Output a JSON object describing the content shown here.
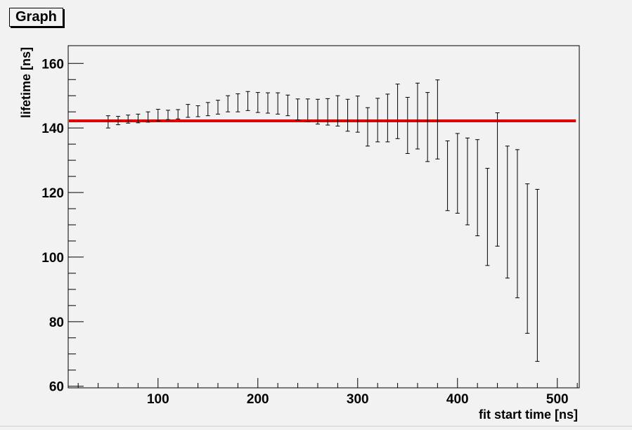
{
  "canvas": {
    "title": "Graph"
  },
  "chart_data": {
    "type": "scatter",
    "xlabel": "fit start time [ns]",
    "ylabel": "lifetime [ns]",
    "xlim": [
      10,
      522
    ],
    "ylim": [
      59.5,
      165.5
    ],
    "x_ticks": [
      100,
      200,
      300,
      400,
      500
    ],
    "y_ticks": [
      60,
      80,
      100,
      120,
      140,
      160
    ],
    "x_tick_labels": [
      "100",
      "200",
      "300",
      "400",
      "500"
    ],
    "y_tick_labels": [
      "60",
      "80",
      "100",
      "120",
      "140",
      "160"
    ],
    "grid": false,
    "fit_line": {
      "y": 142.2,
      "color": "#e00000"
    },
    "errorbar_color": "#000000",
    "points": [
      {
        "x": 50,
        "low": 140.0,
        "high": 143.8
      },
      {
        "x": 60,
        "low": 141.0,
        "high": 143.6
      },
      {
        "x": 70,
        "low": 141.5,
        "high": 144.0
      },
      {
        "x": 80,
        "low": 141.6,
        "high": 144.3
      },
      {
        "x": 90,
        "low": 141.8,
        "high": 145.0
      },
      {
        "x": 100,
        "low": 142.2,
        "high": 145.8
      },
      {
        "x": 110,
        "low": 142.6,
        "high": 145.5
      },
      {
        "x": 120,
        "low": 142.8,
        "high": 145.7
      },
      {
        "x": 130,
        "low": 143.3,
        "high": 147.3
      },
      {
        "x": 140,
        "low": 143.5,
        "high": 146.9
      },
      {
        "x": 150,
        "low": 143.8,
        "high": 147.9
      },
      {
        "x": 160,
        "low": 144.3,
        "high": 148.6
      },
      {
        "x": 170,
        "low": 145.0,
        "high": 150.0
      },
      {
        "x": 180,
        "low": 145.0,
        "high": 150.6
      },
      {
        "x": 190,
        "low": 145.4,
        "high": 151.3
      },
      {
        "x": 200,
        "low": 144.8,
        "high": 151.0
      },
      {
        "x": 210,
        "low": 144.6,
        "high": 150.9
      },
      {
        "x": 220,
        "low": 144.3,
        "high": 150.9
      },
      {
        "x": 230,
        "low": 143.8,
        "high": 150.2
      },
      {
        "x": 240,
        "low": 142.5,
        "high": 149.0
      },
      {
        "x": 250,
        "low": 141.9,
        "high": 149.0
      },
      {
        "x": 260,
        "low": 141.2,
        "high": 148.9
      },
      {
        "x": 270,
        "low": 140.9,
        "high": 149.1
      },
      {
        "x": 280,
        "low": 140.6,
        "high": 150.0
      },
      {
        "x": 290,
        "low": 139.0,
        "high": 148.9
      },
      {
        "x": 300,
        "low": 138.7,
        "high": 149.9
      },
      {
        "x": 310,
        "low": 134.4,
        "high": 146.3
      },
      {
        "x": 320,
        "low": 135.7,
        "high": 149.2
      },
      {
        "x": 330,
        "low": 135.7,
        "high": 150.5
      },
      {
        "x": 340,
        "low": 136.7,
        "high": 153.6
      },
      {
        "x": 350,
        "low": 132.1,
        "high": 149.5
      },
      {
        "x": 360,
        "low": 133.5,
        "high": 153.9
      },
      {
        "x": 370,
        "low": 129.6,
        "high": 151.0
      },
      {
        "x": 380,
        "low": 130.4,
        "high": 154.9
      },
      {
        "x": 390,
        "low": 114.4,
        "high": 136.0
      },
      {
        "x": 400,
        "low": 113.6,
        "high": 138.3
      },
      {
        "x": 410,
        "low": 110.0,
        "high": 136.9
      },
      {
        "x": 420,
        "low": 106.6,
        "high": 136.4
      },
      {
        "x": 430,
        "low": 97.4,
        "high": 127.5
      },
      {
        "x": 440,
        "low": 103.4,
        "high": 144.7
      },
      {
        "x": 450,
        "low": 93.5,
        "high": 134.4
      },
      {
        "x": 460,
        "low": 87.4,
        "high": 133.3
      },
      {
        "x": 470,
        "low": 76.4,
        "high": 122.7
      },
      {
        "x": 480,
        "low": 67.7,
        "high": 121.0
      }
    ]
  }
}
